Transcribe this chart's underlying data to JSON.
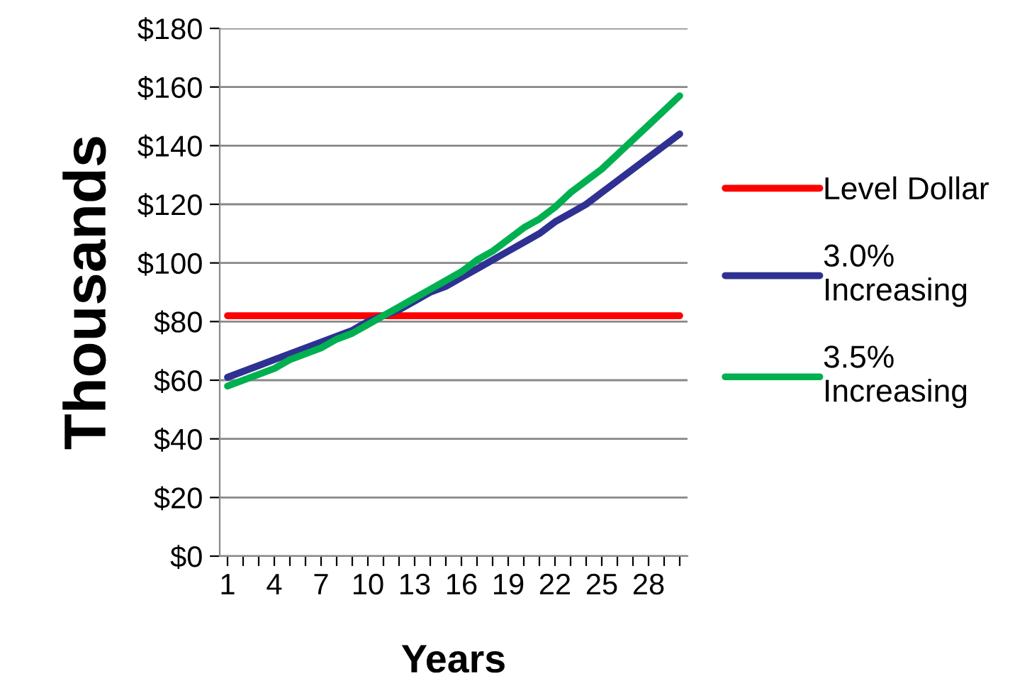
{
  "chart_data": {
    "type": "line",
    "xlabel": "Years",
    "ylabel": "Thousands",
    "categories": [
      "1",
      null,
      null,
      "4",
      null,
      null,
      "7",
      null,
      null,
      "10",
      null,
      null,
      "13",
      null,
      null,
      "16",
      null,
      null,
      "19",
      null,
      null,
      "22",
      null,
      null,
      "25",
      null,
      null,
      "28",
      null,
      null
    ],
    "series": [
      {
        "name": "Level Dollar",
        "color": "#ff0000",
        "values": [
          82,
          82,
          82,
          82,
          82,
          82,
          82,
          82,
          82,
          82,
          82,
          82,
          82,
          82,
          82,
          82,
          82,
          82,
          82,
          82,
          82,
          82,
          82,
          82,
          82,
          82,
          82,
          82,
          82,
          82
        ]
      },
      {
        "name": "3.0%\nIncreasing",
        "color": "#2e3192",
        "values": [
          61,
          63,
          65,
          67,
          69,
          71,
          73,
          75,
          77,
          80,
          82,
          84,
          87,
          90,
          92,
          95,
          98,
          101,
          104,
          107,
          110,
          114,
          117,
          120,
          124,
          128,
          132,
          136,
          140,
          144
        ]
      },
      {
        "name": "3.5%\nIncreasing",
        "color": "#00b050",
        "values": [
          58,
          60,
          62,
          64,
          67,
          69,
          71,
          74,
          76,
          79,
          82,
          85,
          88,
          91,
          94,
          97,
          101,
          104,
          108,
          112,
          115,
          119,
          124,
          128,
          132,
          137,
          142,
          147,
          152,
          157
        ]
      }
    ],
    "ylim": [
      0,
      180
    ],
    "yticks": [
      {
        "value": 0,
        "label": "$0"
      },
      {
        "value": 20,
        "label": "$20"
      },
      {
        "value": 40,
        "label": "$40"
      },
      {
        "value": 60,
        "label": "$60"
      },
      {
        "value": 80,
        "label": "$80"
      },
      {
        "value": 100,
        "label": "$100"
      },
      {
        "value": 120,
        "label": "$120"
      },
      {
        "value": 140,
        "label": "$140"
      },
      {
        "value": 160,
        "label": "$160"
      },
      {
        "value": 180,
        "label": "$180"
      }
    ],
    "grid": "y",
    "legend": "right",
    "marker": "none",
    "line_style": "solid"
  }
}
